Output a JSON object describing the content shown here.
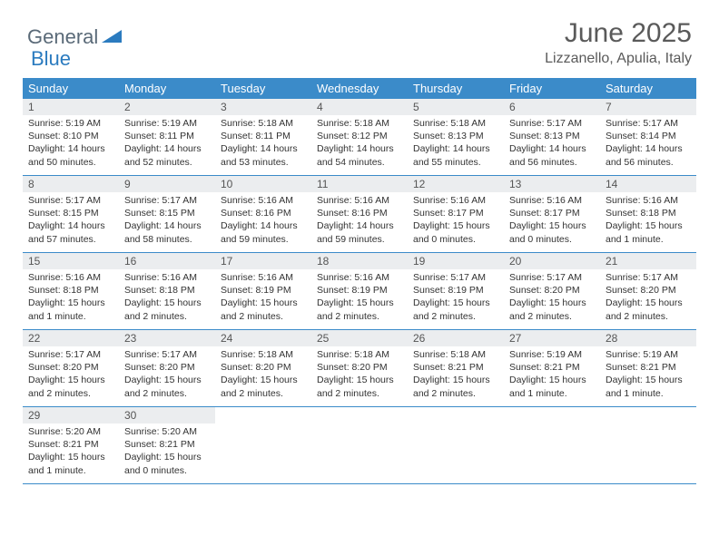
{
  "logo": {
    "text1": "General",
    "text2": "Blue"
  },
  "title": "June 2025",
  "location": "Lizzanello, Apulia, Italy",
  "colors": {
    "header_bg": "#3b8bc9",
    "header_fg": "#ffffff",
    "daynum_bg": "#ebedef",
    "border": "#3b8bc9",
    "logo_gray": "#5a6a78",
    "logo_blue": "#2b7bbf"
  },
  "weekdays": [
    "Sunday",
    "Monday",
    "Tuesday",
    "Wednesday",
    "Thursday",
    "Friday",
    "Saturday"
  ],
  "days": [
    {
      "n": "1",
      "sr": "5:19 AM",
      "ss": "8:10 PM",
      "dl": "14 hours and 50 minutes."
    },
    {
      "n": "2",
      "sr": "5:19 AM",
      "ss": "8:11 PM",
      "dl": "14 hours and 52 minutes."
    },
    {
      "n": "3",
      "sr": "5:18 AM",
      "ss": "8:11 PM",
      "dl": "14 hours and 53 minutes."
    },
    {
      "n": "4",
      "sr": "5:18 AM",
      "ss": "8:12 PM",
      "dl": "14 hours and 54 minutes."
    },
    {
      "n": "5",
      "sr": "5:18 AM",
      "ss": "8:13 PM",
      "dl": "14 hours and 55 minutes."
    },
    {
      "n": "6",
      "sr": "5:17 AM",
      "ss": "8:13 PM",
      "dl": "14 hours and 56 minutes."
    },
    {
      "n": "7",
      "sr": "5:17 AM",
      "ss": "8:14 PM",
      "dl": "14 hours and 56 minutes."
    },
    {
      "n": "8",
      "sr": "5:17 AM",
      "ss": "8:15 PM",
      "dl": "14 hours and 57 minutes."
    },
    {
      "n": "9",
      "sr": "5:17 AM",
      "ss": "8:15 PM",
      "dl": "14 hours and 58 minutes."
    },
    {
      "n": "10",
      "sr": "5:16 AM",
      "ss": "8:16 PM",
      "dl": "14 hours and 59 minutes."
    },
    {
      "n": "11",
      "sr": "5:16 AM",
      "ss": "8:16 PM",
      "dl": "14 hours and 59 minutes."
    },
    {
      "n": "12",
      "sr": "5:16 AM",
      "ss": "8:17 PM",
      "dl": "15 hours and 0 minutes."
    },
    {
      "n": "13",
      "sr": "5:16 AM",
      "ss": "8:17 PM",
      "dl": "15 hours and 0 minutes."
    },
    {
      "n": "14",
      "sr": "5:16 AM",
      "ss": "8:18 PM",
      "dl": "15 hours and 1 minute."
    },
    {
      "n": "15",
      "sr": "5:16 AM",
      "ss": "8:18 PM",
      "dl": "15 hours and 1 minute."
    },
    {
      "n": "16",
      "sr": "5:16 AM",
      "ss": "8:18 PM",
      "dl": "15 hours and 2 minutes."
    },
    {
      "n": "17",
      "sr": "5:16 AM",
      "ss": "8:19 PM",
      "dl": "15 hours and 2 minutes."
    },
    {
      "n": "18",
      "sr": "5:16 AM",
      "ss": "8:19 PM",
      "dl": "15 hours and 2 minutes."
    },
    {
      "n": "19",
      "sr": "5:17 AM",
      "ss": "8:19 PM",
      "dl": "15 hours and 2 minutes."
    },
    {
      "n": "20",
      "sr": "5:17 AM",
      "ss": "8:20 PM",
      "dl": "15 hours and 2 minutes."
    },
    {
      "n": "21",
      "sr": "5:17 AM",
      "ss": "8:20 PM",
      "dl": "15 hours and 2 minutes."
    },
    {
      "n": "22",
      "sr": "5:17 AM",
      "ss": "8:20 PM",
      "dl": "15 hours and 2 minutes."
    },
    {
      "n": "23",
      "sr": "5:17 AM",
      "ss": "8:20 PM",
      "dl": "15 hours and 2 minutes."
    },
    {
      "n": "24",
      "sr": "5:18 AM",
      "ss": "8:20 PM",
      "dl": "15 hours and 2 minutes."
    },
    {
      "n": "25",
      "sr": "5:18 AM",
      "ss": "8:20 PM",
      "dl": "15 hours and 2 minutes."
    },
    {
      "n": "26",
      "sr": "5:18 AM",
      "ss": "8:21 PM",
      "dl": "15 hours and 2 minutes."
    },
    {
      "n": "27",
      "sr": "5:19 AM",
      "ss": "8:21 PM",
      "dl": "15 hours and 1 minute."
    },
    {
      "n": "28",
      "sr": "5:19 AM",
      "ss": "8:21 PM",
      "dl": "15 hours and 1 minute."
    },
    {
      "n": "29",
      "sr": "5:20 AM",
      "ss": "8:21 PM",
      "dl": "15 hours and 1 minute."
    },
    {
      "n": "30",
      "sr": "5:20 AM",
      "ss": "8:21 PM",
      "dl": "15 hours and 0 minutes."
    }
  ],
  "labels": {
    "sunrise": "Sunrise:",
    "sunset": "Sunset:",
    "daylight": "Daylight:"
  }
}
